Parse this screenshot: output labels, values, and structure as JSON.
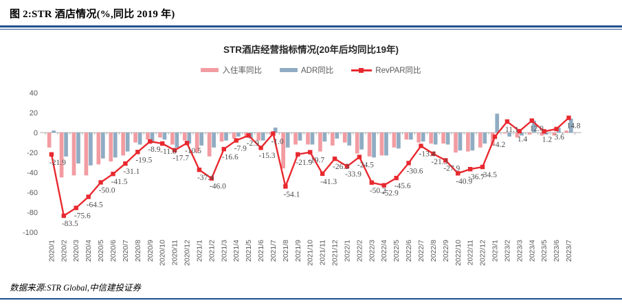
{
  "header": {
    "label": "图 2:STR 酒店情况(%,同比 2019 年)"
  },
  "chart": {
    "title": "STR酒店经营指标情况(20年后均同比19年)",
    "legend": [
      {
        "label": "入住率同比"
      },
      {
        "label": "ADR同比"
      },
      {
        "label": "RevPAR同比"
      }
    ]
  },
  "chart_data": {
    "type": "combo",
    "title": "STR酒店经营指标情况(20年后均同比19年)",
    "categories": [
      "2020/1",
      "2020/2",
      "2020/3",
      "2020/4",
      "2020/5",
      "2020/6",
      "2020/7",
      "2020/8",
      "2020/9",
      "2020/10",
      "2020/11",
      "2020/12",
      "2021/1",
      "2021/2",
      "2021/3",
      "2021/4",
      "2021/5",
      "2021/6",
      "2021/7",
      "2021/8",
      "2021/9",
      "2021/10",
      "2021/11",
      "2021/12",
      "2022/1",
      "2022/2",
      "2022/3",
      "2022/4",
      "2022/5",
      "2022/6",
      "2022/7",
      "2022/8",
      "2022/9",
      "2022/10",
      "2022/11",
      "2022/12",
      "2023/1",
      "2023/2",
      "2023/3",
      "2023/4",
      "2023/5",
      "2023/6",
      "2023/7"
    ],
    "series": [
      {
        "name": "入住率同比",
        "type": "bar",
        "color": "#F29CA2",
        "values": [
          -15,
          -45,
          -43,
          -43,
          -32,
          -29,
          -23,
          -10,
          -7,
          -5,
          -12,
          -8,
          -20,
          -24,
          -9,
          -6,
          -5,
          -8,
          -2,
          -36,
          -12,
          -12,
          -19,
          -13,
          -10,
          -21,
          -24,
          -23,
          -15,
          -7,
          -10,
          -11,
          -11,
          -20,
          -19,
          -15,
          -13,
          -1,
          -5,
          -2,
          -3,
          -3,
          2
        ]
      },
      {
        "name": "ADR同比",
        "type": "bar",
        "color": "#8FACC3",
        "values": [
          2,
          -24,
          -31,
          -33,
          -26,
          -25,
          -19,
          -12,
          -9,
          -7,
          -15,
          -11,
          -13,
          -15,
          -8,
          -4,
          -6,
          -8,
          5,
          -15,
          -8,
          -12,
          -9,
          -6,
          -13,
          -17,
          -25,
          -23,
          -16,
          -7,
          -9,
          -12,
          -12,
          -18,
          -18,
          -11,
          19,
          -4,
          -3,
          12,
          -2,
          5,
          14
        ]
      },
      {
        "name": "RevPAR同比",
        "type": "line",
        "color": "#E8292F",
        "data_labels": true,
        "values": [
          -21.9,
          -83.5,
          -75.6,
          -64.5,
          -50.0,
          -41.5,
          -31.1,
          -19.5,
          -8.9,
          -11.0,
          -17.7,
          -10.5,
          -37.4,
          -46.0,
          -16.6,
          -7.9,
          -2.9,
          -15.3,
          -1.0,
          -54.1,
          -21.9,
          -19.7,
          -41.3,
          -26.3,
          -33.9,
          -24.5,
          -50.2,
          -52.9,
          -45.6,
          -30.6,
          -13.4,
          -21.3,
          -27.9,
          -40.9,
          -36.7,
          -34.5,
          -4.2,
          11.1,
          1.4,
          12.0,
          1.2,
          3.6,
          14.8
        ]
      }
    ],
    "ylim": [
      -100,
      40
    ],
    "yticks": [
      40,
      20,
      0,
      -20,
      -40,
      -60,
      -80,
      -100
    ],
    "legend_position": "top",
    "grid": false
  },
  "footer": {
    "source": "数据来源:STR Global,中信建投证券"
  },
  "colors": {
    "rule_navy": "#1F4E8C",
    "bar_occupancy": "#F29CA2",
    "bar_adr": "#8FACC3",
    "line_revpar": "#E8292F",
    "axis_gray": "#ADADAD",
    "label_gray": "#4D4D4D",
    "tick_text_gray": "#595959"
  }
}
